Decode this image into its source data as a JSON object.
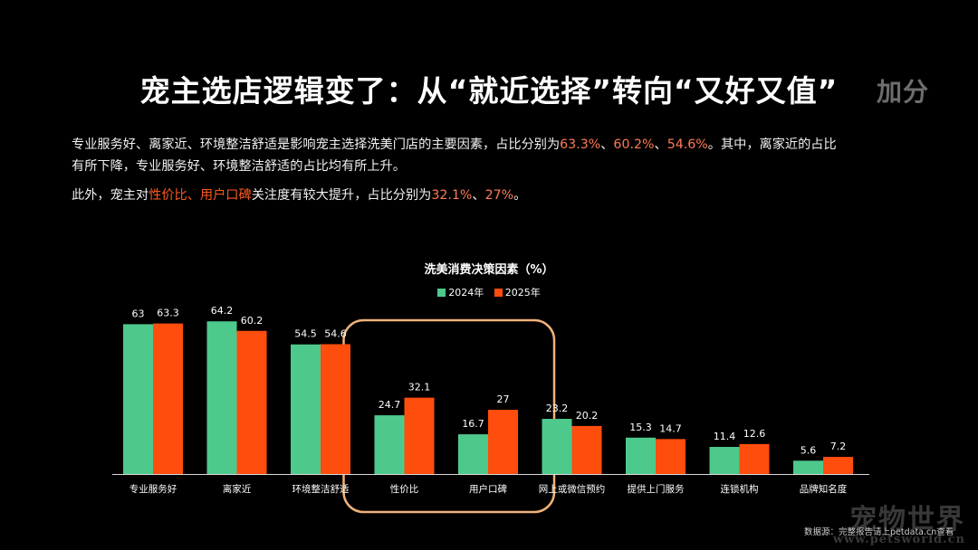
{
  "title": "宠主选店逻辑变了：从“就近选择”转向“又好又值”",
  "title_ghost": "加分",
  "paragraph1": {
    "text_a": "专业服务好、离家近、环境整洁舒适是影响宠主选择洗美门店的主要因素，占比分别为",
    "v1": "63.3%",
    "sep1": "、",
    "v2": "60.2%",
    "sep2": "、",
    "v3": "54.6%",
    "text_b": "。其中，离家近的占比",
    "line2": "有所下降，专业服务好、环境整洁舒适的占比均有所上升。"
  },
  "paragraph2": {
    "text_a": "此外，宠主对",
    "h1": "性价比",
    "sep": "、",
    "h2": "用户口碑",
    "text_b": "关注度有较大提升，占比分别为",
    "v1": "32.1%",
    "sep2": "、",
    "v2": "27%",
    "text_c": "。"
  },
  "source": "数据源：完整报告请上petdata.cn查看",
  "watermark": {
    "main": "宠物世界",
    "sub": "www.petsworld.cn"
  },
  "colors": {
    "series2024": "#4ec98c",
    "series2025": "#ff4d0d",
    "highlight_box": "#f0b27a"
  },
  "chart_data": {
    "type": "bar",
    "title": "洗美消费决策因素（%）",
    "categories": [
      "专业服务好",
      "离家近",
      "环境整洁舒适",
      "性价比",
      "用户口碑",
      "网上或微信预约",
      "提供上门服务",
      "连锁机构",
      "品牌知名度"
    ],
    "series": [
      {
        "name": "2024年",
        "values": [
          63,
          64.2,
          54.5,
          24.7,
          16.7,
          23.2,
          15.3,
          11.4,
          5.6
        ]
      },
      {
        "name": "2025年",
        "values": [
          63.3,
          60.2,
          54.6,
          32.1,
          27,
          20.2,
          14.7,
          12.6,
          7.2
        ]
      }
    ],
    "highlighted_categories": [
      "性价比",
      "用户口碑"
    ],
    "ylim": [
      0,
      70
    ],
    "legend_position": "top-center",
    "grid": false
  }
}
